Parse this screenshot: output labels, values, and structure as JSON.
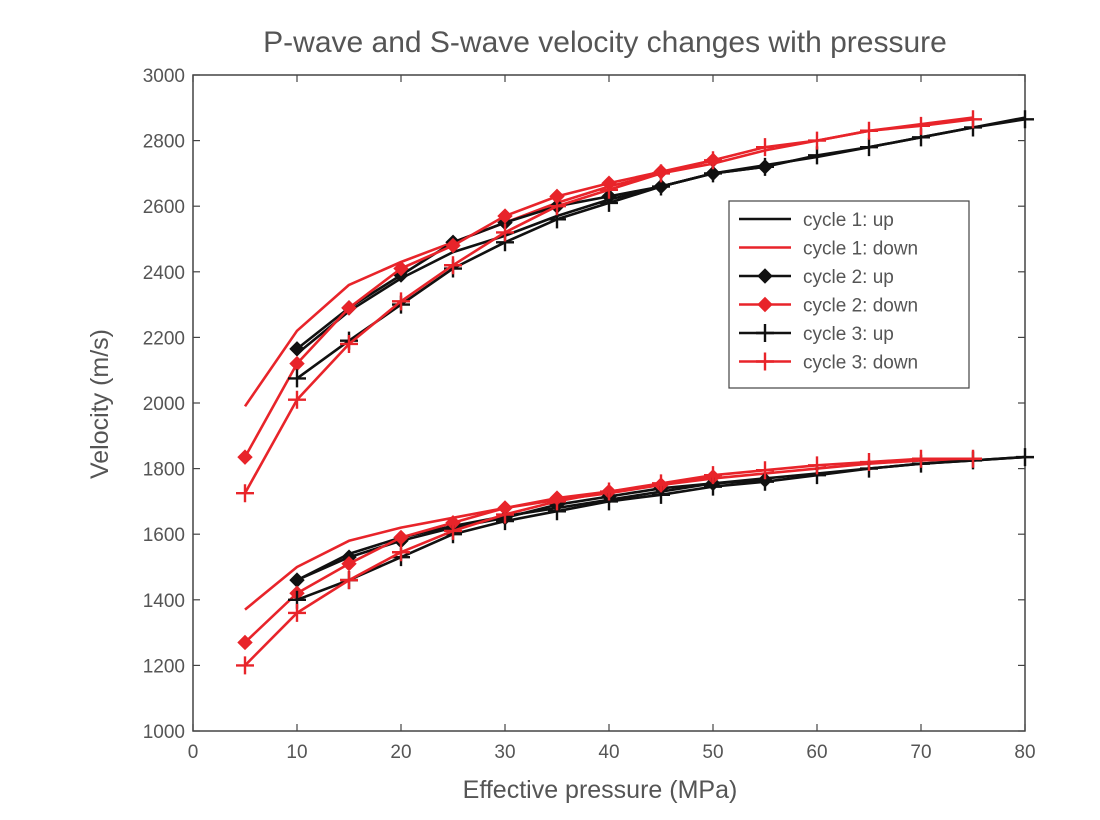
{
  "chart_data": {
    "type": "line",
    "title": "P-wave and S-wave velocity changes with pressure",
    "xlabel": "Effective pressure (MPa)",
    "ylabel": "Velocity (m/s)",
    "xlim": [
      0,
      80
    ],
    "ylim": [
      1000,
      3000
    ],
    "xticks": [
      0,
      10,
      20,
      30,
      40,
      50,
      60,
      70,
      80
    ],
    "yticks": [
      1000,
      1200,
      1400,
      1600,
      1800,
      2000,
      2200,
      2400,
      2600,
      2800,
      3000
    ],
    "grid": false,
    "legend_position": "center-right",
    "colors": {
      "black": "#111111",
      "red": "#e8242a",
      "axis": "#444444",
      "text": "#555555"
    },
    "series": [
      {
        "name": "cycle 1: up",
        "group": "P-wave",
        "color": "black",
        "marker": "none",
        "x": [
          10,
          15,
          20,
          25,
          30,
          35,
          40,
          45,
          50,
          55,
          60,
          65,
          70,
          75,
          80
        ],
        "y": [
          2150,
          2280,
          2380,
          2460,
          2510,
          2570,
          2620,
          2660,
          2700,
          2725,
          2750,
          2780,
          2810,
          2840,
          2870
        ]
      },
      {
        "name": "cycle 1: down",
        "group": "P-wave",
        "color": "red",
        "marker": "none",
        "x": [
          5,
          10,
          15,
          20,
          25,
          30,
          35,
          40,
          45,
          50,
          55,
          60,
          65,
          70,
          75
        ],
        "y": [
          1990,
          2220,
          2360,
          2430,
          2490,
          2550,
          2610,
          2660,
          2700,
          2730,
          2770,
          2800,
          2830,
          2850,
          2870
        ]
      },
      {
        "name": "cycle 2: up",
        "group": "P-wave",
        "color": "black",
        "marker": "diamond",
        "x": [
          10,
          15,
          20,
          25,
          30,
          35,
          40,
          45,
          50,
          55
        ],
        "y": [
          2165,
          2290,
          2390,
          2490,
          2550,
          2600,
          2630,
          2660,
          2700,
          2720
        ]
      },
      {
        "name": "cycle 2: down",
        "group": "P-wave",
        "color": "red",
        "marker": "diamond",
        "x": [
          5,
          10,
          15,
          20,
          25,
          30,
          35,
          40,
          45,
          50
        ],
        "y": [
          1835,
          2120,
          2290,
          2410,
          2480,
          2570,
          2630,
          2670,
          2705,
          2740
        ]
      },
      {
        "name": "cycle 3: up",
        "group": "P-wave",
        "color": "black",
        "marker": "plus",
        "x": [
          10,
          15,
          20,
          25,
          30,
          35,
          40,
          45,
          50,
          55,
          60,
          65,
          70,
          75,
          80
        ],
        "y": [
          2075,
          2190,
          2300,
          2410,
          2490,
          2560,
          2610,
          2660,
          2700,
          2720,
          2755,
          2780,
          2810,
          2840,
          2865
        ]
      },
      {
        "name": "cycle 3: down",
        "group": "P-wave",
        "color": "red",
        "marker": "plus",
        "x": [
          5,
          10,
          15,
          20,
          25,
          30,
          35,
          40,
          45,
          50,
          55,
          60,
          65,
          70,
          75
        ],
        "y": [
          1725,
          2010,
          2180,
          2310,
          2420,
          2520,
          2600,
          2650,
          2700,
          2740,
          2780,
          2800,
          2830,
          2845,
          2865
        ]
      },
      {
        "name": "cycle 1: up",
        "group": "S-wave",
        "color": "black",
        "marker": "none",
        "x": [
          10,
          15,
          20,
          25,
          30,
          35,
          40,
          45,
          50,
          55,
          60,
          65,
          70,
          75,
          80
        ],
        "y": [
          1460,
          1540,
          1590,
          1625,
          1655,
          1680,
          1705,
          1730,
          1755,
          1770,
          1785,
          1800,
          1815,
          1825,
          1835
        ]
      },
      {
        "name": "cycle 1: down",
        "group": "S-wave",
        "color": "red",
        "marker": "none",
        "x": [
          5,
          10,
          15,
          20,
          25,
          30,
          35,
          40,
          45,
          50,
          55,
          60,
          65,
          70,
          75
        ],
        "y": [
          1370,
          1500,
          1580,
          1620,
          1650,
          1680,
          1705,
          1725,
          1750,
          1770,
          1785,
          1800,
          1815,
          1825,
          1830
        ]
      },
      {
        "name": "cycle 2: up",
        "group": "S-wave",
        "color": "black",
        "marker": "diamond",
        "x": [
          10,
          15,
          20,
          25,
          30,
          35,
          40,
          45,
          50,
          55
        ],
        "y": [
          1460,
          1530,
          1580,
          1620,
          1650,
          1690,
          1715,
          1740,
          1755,
          1765
        ]
      },
      {
        "name": "cycle 2: down",
        "group": "S-wave",
        "color": "red",
        "marker": "diamond",
        "x": [
          5,
          10,
          15,
          20,
          25,
          30,
          35,
          40,
          45,
          50
        ],
        "y": [
          1270,
          1420,
          1510,
          1590,
          1635,
          1680,
          1710,
          1730,
          1750,
          1775
        ]
      },
      {
        "name": "cycle 3: up",
        "group": "S-wave",
        "color": "black",
        "marker": "plus",
        "x": [
          10,
          15,
          20,
          25,
          30,
          35,
          40,
          45,
          50,
          55,
          60,
          65,
          70,
          75,
          80
        ],
        "y": [
          1400,
          1460,
          1530,
          1600,
          1640,
          1670,
          1700,
          1720,
          1745,
          1760,
          1780,
          1800,
          1815,
          1825,
          1835
        ]
      },
      {
        "name": "cycle 3: down",
        "group": "S-wave",
        "color": "red",
        "marker": "plus",
        "x": [
          5,
          10,
          15,
          20,
          25,
          30,
          35,
          40,
          45,
          50,
          55,
          60,
          65,
          70,
          75
        ],
        "y": [
          1200,
          1360,
          1460,
          1545,
          1610,
          1660,
          1700,
          1730,
          1755,
          1780,
          1795,
          1810,
          1820,
          1830,
          1830
        ]
      }
    ],
    "legend": [
      {
        "label": "cycle 1: up",
        "color": "black",
        "marker": "none"
      },
      {
        "label": "cycle 1: down",
        "color": "red",
        "marker": "none"
      },
      {
        "label": "cycle 2: up",
        "color": "black",
        "marker": "diamond"
      },
      {
        "label": "cycle 2: down",
        "color": "red",
        "marker": "diamond"
      },
      {
        "label": "cycle 3: up",
        "color": "black",
        "marker": "plus"
      },
      {
        "label": "cycle 3: down",
        "color": "red",
        "marker": "plus"
      }
    ]
  }
}
